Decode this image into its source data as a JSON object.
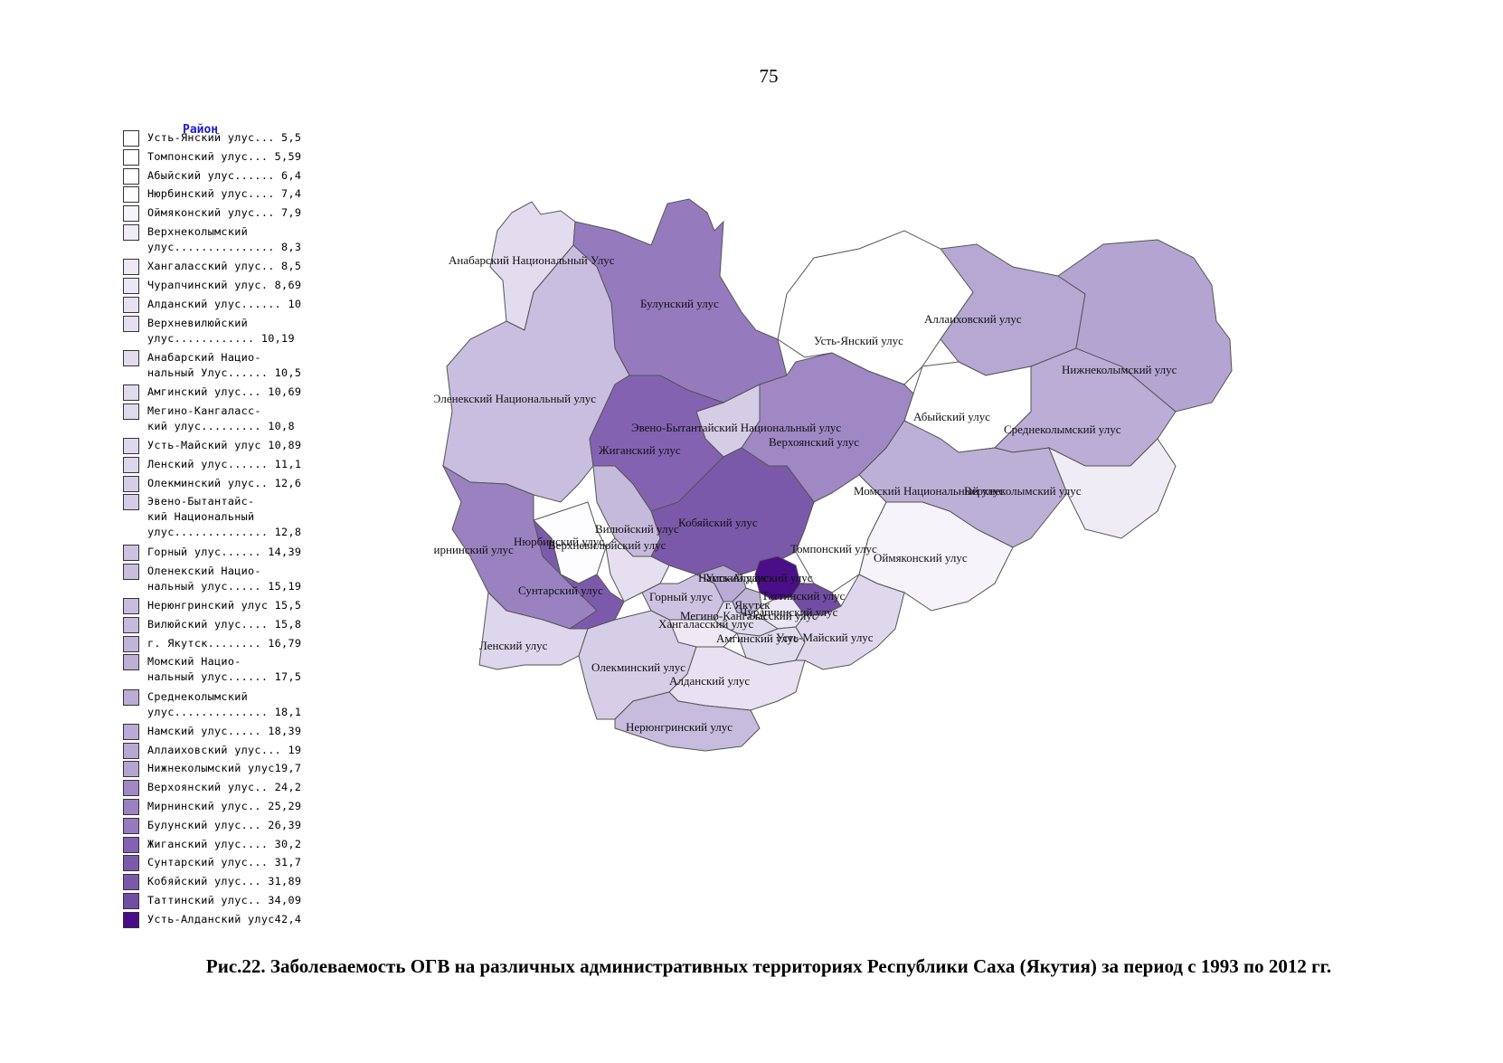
{
  "page_number": "75",
  "legend": {
    "title": "Район",
    "items": [
      {
        "label": "Усть-Янский улус... 5,5",
        "color": "#ffffff"
      },
      {
        "label": "Томпонский улус... 5,59",
        "color": "#ffffff"
      },
      {
        "label": "Абыйский улус...... 6,4",
        "color": "#ffffff"
      },
      {
        "label": "Нюрбинский улус.... 7,4",
        "color": "#fdfcfe"
      },
      {
        "label": "Оймяконский улус... 7,9",
        "color": "#f6f3fa"
      },
      {
        "label": "Верхнеколымский\nулус............... 8,3",
        "color": "#f0ecf6"
      },
      {
        "label": "Хангаласский улус.. 8,5",
        "color": "#eee9f5"
      },
      {
        "label": "Чурапчинский улус. 8,69",
        "color": "#ece7f4"
      },
      {
        "label": "Алданский улус...... 10",
        "color": "#e7e1f1"
      },
      {
        "label": "Верхневилюйский\nулус............ 10,19",
        "color": "#e5dff0"
      },
      {
        "label": "Анабарский Нацио-\nнальный Улус...... 10,5",
        "color": "#e3dcef"
      },
      {
        "label": "Амгинский улус... 10,69",
        "color": "#e1dbee"
      },
      {
        "label": "Мегино-Кангаласс-\nкий улус......... 10,8",
        "color": "#e0daed"
      },
      {
        "label": "Усть-Майский улус 10,89",
        "color": "#dfd8ed"
      },
      {
        "label": "Ленский улус...... 11,1",
        "color": "#ddd6ec"
      },
      {
        "label": "Олекминский улус.. 12,6",
        "color": "#d6cde7"
      },
      {
        "label": "Эвено-Бытантайс-\nкий Национальный\nулус.............. 12,8",
        "color": "#d5cce6"
      },
      {
        "label": "Горный улус...... 14,39",
        "color": "#cdc2e1"
      },
      {
        "label": "Оленекский Нацио-\nнальный улус..... 15,19",
        "color": "#c9bedf"
      },
      {
        "label": "Нерюнгринский улус 15,5",
        "color": "#c7bcdd"
      },
      {
        "label": "Вилюйский улус.... 15,8",
        "color": "#c6badc"
      },
      {
        "label": "г. Якутск........ 16,79",
        "color": "#c1b4d9"
      },
      {
        "label": "Момский Нацио-\nнальный улус...... 17,5",
        "color": "#bdb0d7"
      },
      {
        "label": "Среднеколымский\nулус.............. 18,1",
        "color": "#bbadd6"
      },
      {
        "label": "Намский улус..... 18,39",
        "color": "#b9abd5"
      },
      {
        "label": "Аллаиховский улус... 19",
        "color": "#b6a8d3"
      },
      {
        "label": "Нижнеколымский улус19,7",
        "color": "#b3a4d1"
      },
      {
        "label": "Верхоянский улус.. 24,2",
        "color": "#9f88c4"
      },
      {
        "label": "Мирнинский улус.. 25,29",
        "color": "#9a82c1"
      },
      {
        "label": "Булунский улус... 26,39",
        "color": "#957bbd"
      },
      {
        "label": "Жиганский улус.... 30,2",
        "color": "#8363b1"
      },
      {
        "label": "Сунтарский улус... 31,7",
        "color": "#7c5aab"
      },
      {
        "label": "Кобяйский улус... 31,89",
        "color": "#7b59aa"
      },
      {
        "label": "Таттинский улус.. 34,09",
        "color": "#714da3"
      },
      {
        "label": "Усть-Алданский улус42,4",
        "color": "#4a0e88"
      }
    ]
  },
  "map": {
    "labels": [
      "Анабарский Национальный Улус",
      "Булунский улус",
      "Усть-Янский улус",
      "Аллаиховский улус",
      "Нижнеколымский улус",
      "Оленекский Национальный улус",
      "Абыйский улус",
      "Среднеколымский улус",
      "Эвено-Бытантайский Национальный улус",
      "Верхоянский улус",
      "Жиганский улус",
      "Момский Национальный улус",
      "Верхнеколымский улус",
      "Кобяйский улус",
      "Вилюйский улус",
      "Нюрбинский улус",
      "Верхневилюйский улус",
      "Мирнинский улус",
      "Томпонский улус",
      "Оймяконский улус",
      "Намский улус",
      "Усть-Алданский улус",
      "Сунтарский улус",
      "Горный улус",
      "Таттинский улус",
      "г. Якутск",
      "Чурапчинский улус",
      "Мегино-Кангаласский улус",
      "Хангаласский улус",
      "Амгинский улус",
      "Усть-Майский улус",
      "Ленский улус",
      "Олекминский улус",
      "Алданский улус",
      "Нерюнгринский улус"
    ]
  },
  "caption": "Рис.22. Заболеваемость ОГВ на различных административных территориях Республики Саха (Якутия) за период с 1993 по 2012 гг."
}
